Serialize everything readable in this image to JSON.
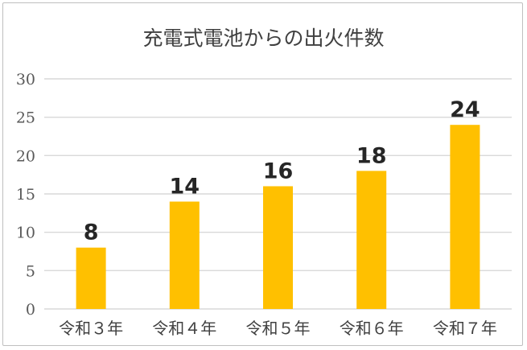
{
  "chart_data": {
    "type": "bar",
    "title": "充電式電池からの出火件数",
    "xlabel": "",
    "ylabel": "",
    "categories": [
      "令和３年",
      "令和４年",
      "令和５年",
      "令和６年",
      "令和７年"
    ],
    "values": [
      8,
      14,
      16,
      18,
      24
    ],
    "ylim": [
      0,
      30
    ],
    "yticks": [
      "0",
      "5",
      "10",
      "15",
      "20",
      "25",
      "30"
    ],
    "grid": true,
    "legend": "none",
    "bar_color": "#FFC000",
    "grid_color": "#D9D9D9"
  }
}
